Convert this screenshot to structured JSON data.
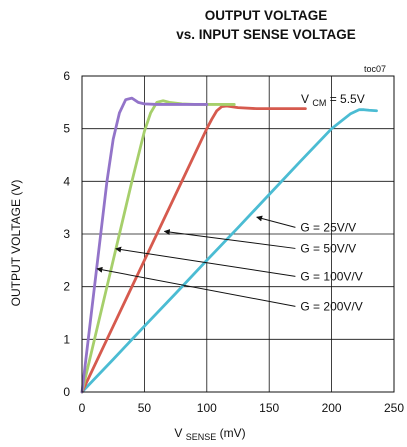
{
  "chart_data": {
    "type": "line",
    "title": "OUTPUT VOLTAGE",
    "subtitle": "vs. INPUT SENSE VOLTAGE",
    "tag": "toc07",
    "xlabel": {
      "main": "V",
      "sub": "SENSE",
      "unit": "(mV)"
    },
    "ylabel": "OUTPUT VOLTAGE (V)",
    "xlim": [
      0,
      250
    ],
    "ylim": [
      0,
      6
    ],
    "xticks": [
      "0",
      "50",
      "100",
      "150",
      "200",
      "250"
    ],
    "yticks": [
      "0",
      "1",
      "2",
      "3",
      "4",
      "5",
      "6"
    ],
    "grid": true,
    "condition": {
      "main": "V",
      "sub": "CM",
      "rest": " = 5.5V"
    },
    "series": [
      {
        "name": "G = 25V/V",
        "color": "#4bbcd3",
        "x": [
          0,
          25,
          50,
          75,
          100,
          125,
          150,
          175,
          200,
          215,
          222,
          226,
          230,
          236
        ],
        "y": [
          0,
          0.62,
          1.25,
          1.87,
          2.5,
          3.12,
          3.75,
          4.38,
          5.0,
          5.28,
          5.36,
          5.36,
          5.35,
          5.34
        ]
      },
      {
        "name": "G = 50V/V",
        "color": "#d65a4e",
        "x": [
          0,
          25,
          50,
          75,
          100,
          104,
          108,
          112,
          116,
          125,
          140,
          160,
          179
        ],
        "y": [
          0,
          1.25,
          2.5,
          3.75,
          5.0,
          5.18,
          5.34,
          5.42,
          5.43,
          5.4,
          5.38,
          5.38,
          5.38
        ]
      },
      {
        "name": "G = 100V/V",
        "color": "#a6cf6b",
        "x": [
          0,
          10,
          20,
          30,
          40,
          50,
          55,
          60,
          65,
          70,
          80,
          90,
          100,
          110,
          122
        ],
        "y": [
          0,
          1.0,
          2.0,
          3.0,
          4.0,
          4.95,
          5.3,
          5.5,
          5.53,
          5.5,
          5.47,
          5.46,
          5.46,
          5.46,
          5.46
        ]
      },
      {
        "name": "G = 200V/V",
        "color": "#9374c9",
        "x": [
          0,
          5,
          10,
          15,
          20,
          25,
          30,
          35,
          40,
          45,
          50,
          60,
          80,
          100
        ],
        "y": [
          0,
          1.0,
          2.0,
          3.0,
          4.0,
          4.8,
          5.3,
          5.55,
          5.58,
          5.5,
          5.47,
          5.46,
          5.46,
          5.46
        ]
      }
    ],
    "annotations": [
      {
        "text": "G = 25V/V",
        "text_x": 175,
        "text_y": 3.05,
        "arrow_x": 140,
        "arrow_y": 3.32
      },
      {
        "text": "G = 50V/V",
        "text_x": 175,
        "text_y": 2.65,
        "arrow_x": 66,
        "arrow_y": 3.05
      },
      {
        "text": "G = 100V/V",
        "text_x": 175,
        "text_y": 2.12,
        "arrow_x": 27,
        "arrow_y": 2.72
      },
      {
        "text": "G = 200V/V",
        "text_x": 175,
        "text_y": 1.55,
        "arrow_x": 12,
        "arrow_y": 2.34
      }
    ]
  }
}
